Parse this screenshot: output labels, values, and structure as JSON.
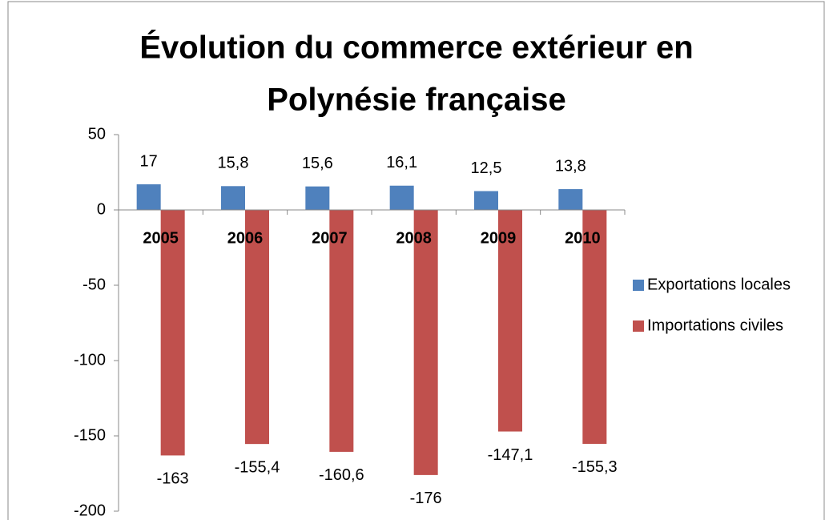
{
  "chart_data": {
    "type": "bar",
    "title": [
      "Évolution du commerce extérieur en",
      "Polynésie française"
    ],
    "categories": [
      "2005",
      "2006",
      "2007",
      "2008",
      "2009",
      "2010"
    ],
    "series": [
      {
        "name": "Exportations locales",
        "color": "#4f81bd",
        "values": [
          17,
          15.8,
          15.6,
          16.1,
          12.5,
          13.8
        ],
        "value_labels": [
          "17",
          "15,8",
          "15,6",
          "16,1",
          "12,5",
          "13,8"
        ]
      },
      {
        "name": "Importations civiles",
        "color": "#c0504d",
        "values": [
          -163,
          -155.4,
          -160.6,
          -176,
          -147.1,
          -155.3
        ],
        "value_labels": [
          "-163",
          "-155,4",
          "-160,6",
          "-176",
          "-147,1",
          "-155,3"
        ]
      }
    ],
    "ylim": [
      -200,
      50
    ],
    "yticks": [
      -200,
      -150,
      -100,
      -50,
      0,
      50
    ],
    "legend": "right"
  }
}
